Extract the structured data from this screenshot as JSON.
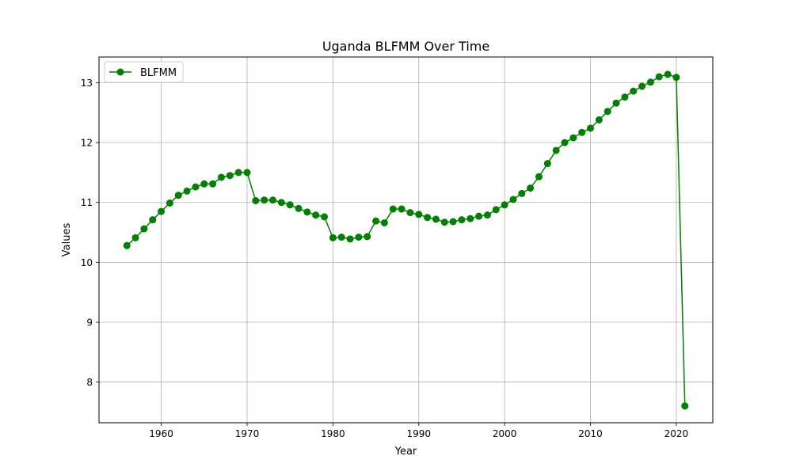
{
  "chart_data": {
    "type": "line",
    "title": "Uganda BLFMM Over Time",
    "xlabel": "Year",
    "ylabel": "Values",
    "xlim": [
      1952.75,
      2024.25
    ],
    "ylim": [
      7.32,
      13.43
    ],
    "xticks": [
      1960,
      1970,
      1980,
      1990,
      2000,
      2010,
      2020
    ],
    "yticks": [
      8,
      9,
      10,
      11,
      12,
      13
    ],
    "grid": true,
    "legend_position": "top-left",
    "series": [
      {
        "name": "BLFMM",
        "color": "#008000",
        "marker": "circle",
        "x": [
          1956,
          1957,
          1958,
          1959,
          1960,
          1961,
          1962,
          1963,
          1964,
          1965,
          1966,
          1967,
          1968,
          1969,
          1970,
          1971,
          1972,
          1973,
          1974,
          1975,
          1976,
          1977,
          1978,
          1979,
          1980,
          1981,
          1982,
          1983,
          1984,
          1985,
          1986,
          1987,
          1988,
          1989,
          1990,
          1991,
          1992,
          1993,
          1994,
          1995,
          1996,
          1997,
          1998,
          1999,
          2000,
          2001,
          2002,
          2003,
          2004,
          2005,
          2006,
          2007,
          2008,
          2009,
          2010,
          2011,
          2012,
          2013,
          2014,
          2015,
          2016,
          2017,
          2018,
          2019,
          2020,
          2021
        ],
        "values": [
          10.28,
          10.41,
          10.56,
          10.71,
          10.85,
          10.99,
          11.12,
          11.19,
          11.26,
          11.31,
          11.31,
          11.42,
          11.45,
          11.5,
          11.5,
          11.03,
          11.04,
          11.04,
          11.0,
          10.96,
          10.9,
          10.84,
          10.79,
          10.76,
          10.41,
          10.42,
          10.39,
          10.42,
          10.43,
          10.69,
          10.66,
          10.89,
          10.89,
          10.83,
          10.8,
          10.75,
          10.72,
          10.67,
          10.68,
          10.71,
          10.73,
          10.77,
          10.79,
          10.88,
          10.96,
          11.05,
          11.15,
          11.24,
          11.43,
          11.65,
          11.87,
          12.0,
          12.08,
          12.17,
          12.24,
          12.38,
          12.52,
          12.66,
          12.76,
          12.86,
          12.94,
          13.01,
          13.1,
          13.14,
          13.09,
          7.6
        ]
      }
    ]
  }
}
